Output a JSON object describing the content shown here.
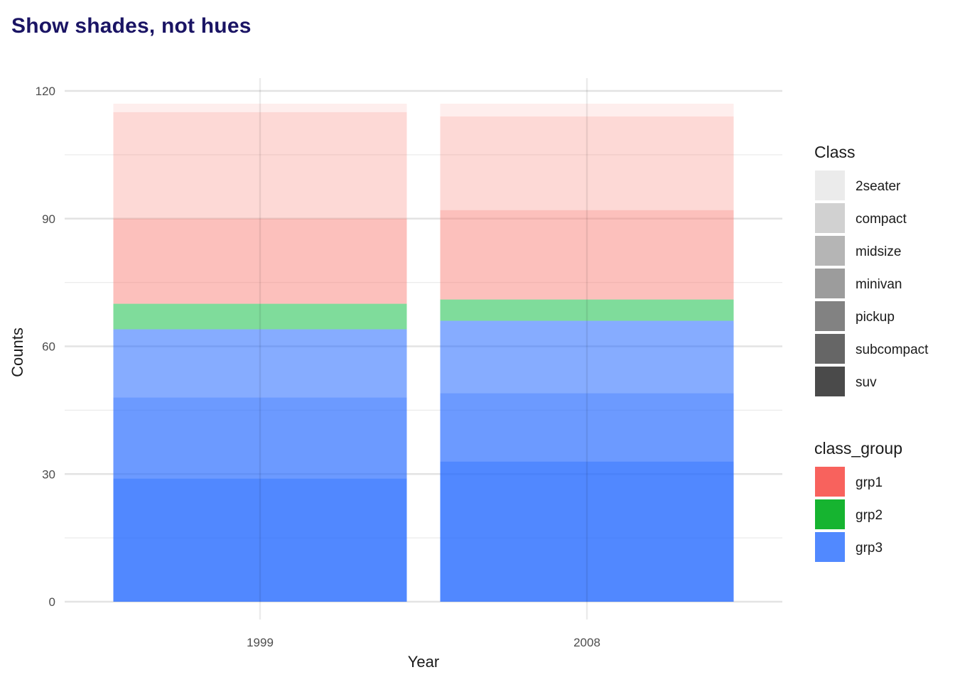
{
  "title": "Show shades, not hues",
  "chart_data": {
    "type": "bar",
    "stacked": true,
    "categories": [
      "1999",
      "2008"
    ],
    "xlabel": "Year",
    "ylabel": "Counts",
    "ylim": [
      0,
      120
    ],
    "yticks": [
      0,
      30,
      60,
      90,
      120
    ],
    "grid": true,
    "legend_position": "right",
    "stack_order_bottom_to_top": [
      "suv",
      "subcompact",
      "pickup",
      "minivan",
      "midsize",
      "compact",
      "2seater"
    ],
    "series": [
      {
        "name": "suv",
        "class_group": "grp3",
        "values": [
          29,
          33
        ]
      },
      {
        "name": "subcompact",
        "class_group": "grp3",
        "values": [
          19,
          16
        ]
      },
      {
        "name": "pickup",
        "class_group": "grp3",
        "values": [
          16,
          17
        ]
      },
      {
        "name": "minivan",
        "class_group": "grp2",
        "values": [
          6,
          5
        ]
      },
      {
        "name": "midsize",
        "class_group": "grp1",
        "values": [
          20,
          21
        ]
      },
      {
        "name": "compact",
        "class_group": "grp1",
        "values": [
          25,
          22
        ]
      },
      {
        "name": "2seater",
        "class_group": "grp1",
        "values": [
          2,
          3
        ]
      }
    ],
    "legends": [
      {
        "title": "Class",
        "items": [
          {
            "label": "2seater",
            "color": "#ebebeb"
          },
          {
            "label": "compact",
            "color": "#d1d1d1"
          },
          {
            "label": "midsize",
            "color": "#b5b5b5"
          },
          {
            "label": "minivan",
            "color": "#9c9c9c"
          },
          {
            "label": "pickup",
            "color": "#828282"
          },
          {
            "label": "subcompact",
            "color": "#666666"
          },
          {
            "label": "suv",
            "color": "#4a4a4a"
          }
        ]
      },
      {
        "title": "class_group",
        "items": [
          {
            "label": "grp1",
            "color": "#f8625d"
          },
          {
            "label": "grp2",
            "color": "#16b430"
          },
          {
            "label": "grp3",
            "color": "#5189ff"
          }
        ]
      }
    ],
    "group_colors": {
      "grp1": "#f8766d",
      "grp2": "#00ba38",
      "grp3": "#2066ff"
    },
    "class_alpha": {
      "2seater": 0.12,
      "compact": 0.28,
      "midsize": 0.46,
      "minivan": 0.5,
      "pickup": 0.54,
      "subcompact": 0.66,
      "suv": 0.78
    }
  }
}
